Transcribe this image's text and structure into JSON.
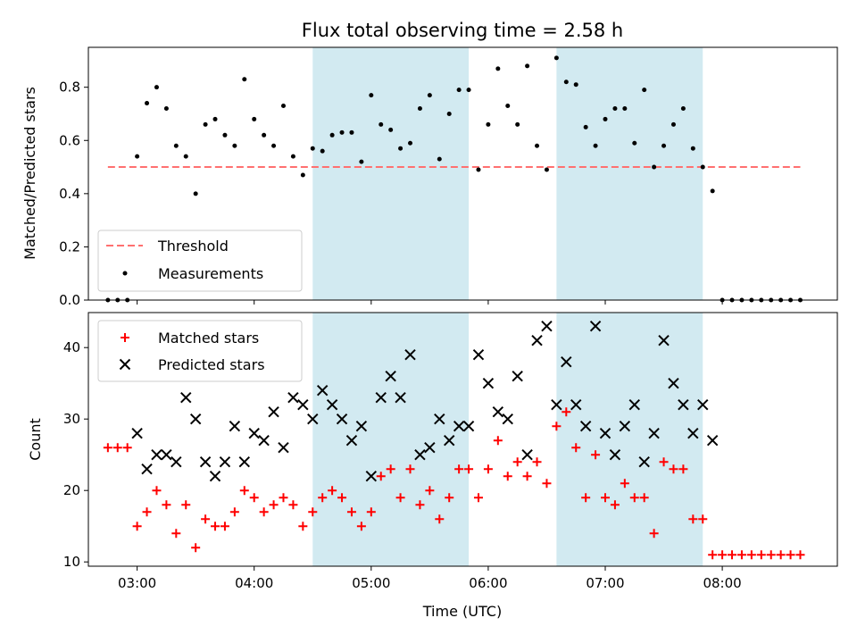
{
  "colors": {
    "band": "#add8e6",
    "threshold": "#ff7070",
    "measurement": "#000000",
    "matched": "#ff0000",
    "predicted": "#000000"
  },
  "chart_data": [
    {
      "type": "scatter",
      "title": "Flux total observing time = 2.58 h",
      "ylabel": "Matched/Predicted stars",
      "xlim": [
        "02:35",
        "08:59"
      ],
      "ylim": [
        0,
        0.95
      ],
      "yticks": [
        0.0,
        0.2,
        0.4,
        0.6,
        0.8
      ],
      "ytick_labels": [
        "0.0",
        "0.2",
        "0.4",
        "0.6",
        "0.8"
      ],
      "shaded_intervals": [
        [
          "04:30",
          "05:50"
        ],
        [
          "06:35",
          "07:50"
        ]
      ],
      "legend": {
        "placement": "lower-left",
        "threshold": "Threshold",
        "measurements": "Measurements"
      },
      "threshold": {
        "value": 0.5,
        "x": [
          "02:45",
          "08:40"
        ]
      },
      "measurements": {
        "x": [
          "02:45",
          "02:50",
          "02:55",
          "03:00",
          "03:05",
          "03:10",
          "03:15",
          "03:20",
          "03:25",
          "03:30",
          "03:35",
          "03:40",
          "03:45",
          "03:50",
          "03:55",
          "04:00",
          "04:05",
          "04:10",
          "04:15",
          "04:20",
          "04:25",
          "04:30",
          "04:35",
          "04:40",
          "04:45",
          "04:50",
          "04:55",
          "05:00",
          "05:05",
          "05:10",
          "05:15",
          "05:20",
          "05:25",
          "05:30",
          "05:35",
          "05:40",
          "05:45",
          "05:50",
          "05:55",
          "06:00",
          "06:05",
          "06:10",
          "06:15",
          "06:20",
          "06:25",
          "06:30",
          "06:35",
          "06:40",
          "06:45",
          "06:50",
          "06:55",
          "07:00",
          "07:05",
          "07:10",
          "07:15",
          "07:20",
          "07:25",
          "07:30",
          "07:35",
          "07:40",
          "07:45",
          "07:50",
          "07:55",
          "08:00",
          "08:05",
          "08:10",
          "08:15",
          "08:20",
          "08:25",
          "08:30",
          "08:35",
          "08:40"
        ],
        "y": [
          0,
          0,
          0,
          0.54,
          0.74,
          0.8,
          0.72,
          0.58,
          0.54,
          0.4,
          0.66,
          0.68,
          0.62,
          0.58,
          0.83,
          0.68,
          0.62,
          0.58,
          0.73,
          0.54,
          0.47,
          0.57,
          0.56,
          0.62,
          0.63,
          0.63,
          0.52,
          0.77,
          0.66,
          0.64,
          0.57,
          0.59,
          0.72,
          0.77,
          0.53,
          0.7,
          0.79,
          0.79,
          0.49,
          0.66,
          0.87,
          0.73,
          0.66,
          0.88,
          0.58,
          0.49,
          0.91,
          0.82,
          0.81,
          0.65,
          0.58,
          0.68,
          0.72,
          0.72,
          0.59,
          0.79,
          0.5,
          0.58,
          0.66,
          0.72,
          0.57,
          0.5,
          0.41,
          0,
          0,
          0,
          0,
          0,
          0,
          0,
          0,
          0
        ]
      }
    },
    {
      "type": "scatter",
      "xlabel": "Time (UTC)",
      "ylabel": "Count",
      "xlim": [
        "02:35",
        "08:59"
      ],
      "ylim": [
        9.4,
        44.9
      ],
      "yticks": [
        10,
        20,
        30,
        40
      ],
      "ytick_labels": [
        "10",
        "20",
        "30",
        "40"
      ],
      "xticks": [
        "03:00",
        "04:00",
        "05:00",
        "06:00",
        "07:00",
        "08:00"
      ],
      "xtick_labels": [
        "03:00",
        "04:00",
        "05:00",
        "06:00",
        "07:00",
        "08:00"
      ],
      "shaded_intervals": [
        [
          "04:30",
          "05:50"
        ],
        [
          "06:35",
          "07:50"
        ]
      ],
      "legend": {
        "placement": "top-left"
      },
      "series": [
        {
          "name": "Matched stars",
          "marker": "+",
          "x": [
            "02:45",
            "02:50",
            "02:55",
            "03:00",
            "03:05",
            "03:10",
            "03:15",
            "03:20",
            "03:25",
            "03:30",
            "03:35",
            "03:40",
            "03:45",
            "03:50",
            "03:55",
            "04:00",
            "04:05",
            "04:10",
            "04:15",
            "04:20",
            "04:25",
            "04:30",
            "04:35",
            "04:40",
            "04:45",
            "04:50",
            "04:55",
            "05:00",
            "05:05",
            "05:10",
            "05:15",
            "05:20",
            "05:25",
            "05:30",
            "05:35",
            "05:40",
            "05:45",
            "05:50",
            "05:55",
            "06:00",
            "06:05",
            "06:10",
            "06:15",
            "06:20",
            "06:25",
            "06:30",
            "06:35",
            "06:40",
            "06:45",
            "06:50",
            "06:55",
            "07:00",
            "07:05",
            "07:10",
            "07:15",
            "07:20",
            "07:25",
            "07:30",
            "07:35",
            "07:40",
            "07:45",
            "07:50",
            "07:55",
            "08:00",
            "08:05",
            "08:10",
            "08:15",
            "08:20",
            "08:25",
            "08:30",
            "08:35",
            "08:40"
          ],
          "y": [
            26,
            26,
            26,
            15,
            17,
            20,
            18,
            14,
            18,
            12,
            16,
            15,
            15,
            17,
            20,
            19,
            17,
            18,
            19,
            18,
            15,
            17,
            19,
            20,
            19,
            17,
            15,
            17,
            22,
            23,
            19,
            23,
            18,
            20,
            16,
            19,
            23,
            23,
            19,
            23,
            27,
            22,
            24,
            22,
            24,
            21,
            29,
            31,
            26,
            19,
            25,
            19,
            18,
            21,
            19,
            19,
            14,
            24,
            23,
            23,
            16,
            16,
            11,
            11,
            11,
            11,
            11,
            11,
            11,
            11,
            11,
            11
          ]
        },
        {
          "name": "Predicted stars",
          "marker": "x",
          "x": [
            "03:00",
            "03:05",
            "03:10",
            "03:15",
            "03:20",
            "03:25",
            "03:30",
            "03:35",
            "03:40",
            "03:45",
            "03:50",
            "03:55",
            "04:00",
            "04:05",
            "04:10",
            "04:15",
            "04:20",
            "04:25",
            "04:30",
            "04:35",
            "04:40",
            "04:45",
            "04:50",
            "04:55",
            "05:00",
            "05:05",
            "05:10",
            "05:15",
            "05:20",
            "05:25",
            "05:30",
            "05:35",
            "05:40",
            "05:45",
            "05:50",
            "05:55",
            "06:00",
            "06:05",
            "06:10",
            "06:15",
            "06:20",
            "06:25",
            "06:30",
            "06:35",
            "06:40",
            "06:45",
            "06:50",
            "06:55",
            "07:00",
            "07:05",
            "07:10",
            "07:15",
            "07:20",
            "07:25",
            "07:30",
            "07:35",
            "07:40",
            "07:45",
            "07:50",
            "07:55"
          ],
          "y": [
            28,
            23,
            25,
            25,
            24,
            33,
            30,
            24,
            22,
            24,
            29,
            24,
            28,
            27,
            31,
            26,
            33,
            32,
            30,
            34,
            32,
            30,
            27,
            29,
            22,
            33,
            36,
            33,
            39,
            25,
            26,
            30,
            27,
            29,
            29,
            39,
            35,
            31,
            30,
            36,
            25,
            41,
            43,
            32,
            38,
            32,
            29,
            43,
            28,
            25,
            29,
            32,
            24,
            28,
            41,
            35,
            32,
            28,
            32,
            27
          ]
        }
      ]
    }
  ]
}
